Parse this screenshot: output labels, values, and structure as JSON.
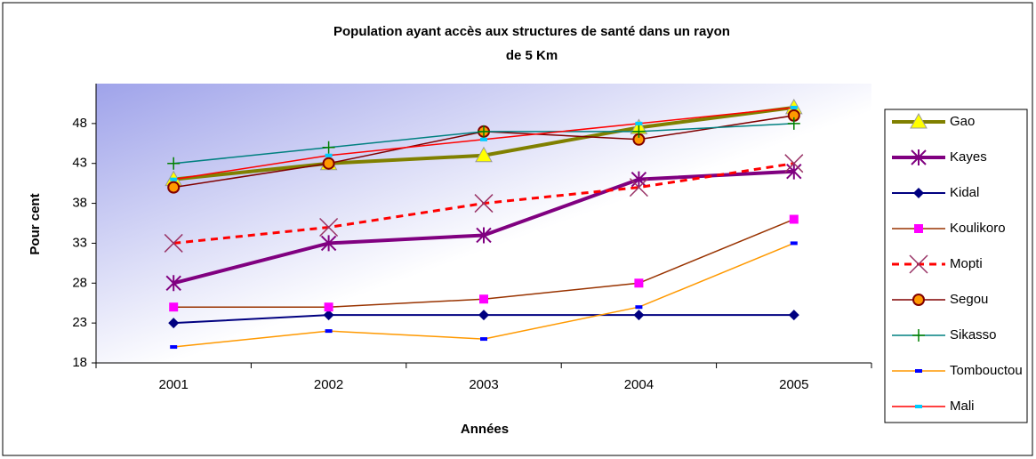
{
  "chart_data": {
    "type": "line",
    "title": [
      "Population ayant accès aux  structures de santé dans un rayon",
      "de 5 Km"
    ],
    "x_label": "Années",
    "y_label": "Pour cent",
    "categories": [
      "2001",
      "2002",
      "2003",
      "2004",
      "2005"
    ],
    "ylim": [
      18,
      53
    ],
    "yticks": [
      18,
      23,
      28,
      33,
      38,
      43,
      48
    ],
    "series": [
      {
        "name": "Gao",
        "color": "#808000",
        "marker": "triangle",
        "marker_color": "#ffff00",
        "width": 4,
        "values": [
          41,
          43,
          44,
          47.5,
          50
        ]
      },
      {
        "name": "Kayes",
        "color": "#800080",
        "marker": "star",
        "marker_color": "#800080",
        "width": 4,
        "values": [
          28,
          33,
          34,
          41,
          42
        ]
      },
      {
        "name": "Kidal",
        "color": "#000080",
        "marker": "diamond",
        "marker_color": "#000080",
        "width": 2,
        "values": [
          23,
          24,
          24,
          24,
          24
        ]
      },
      {
        "name": "Koulikoro",
        "color": "#993300",
        "marker": "square",
        "marker_color": "#ff00ff",
        "width": 1.5,
        "values": [
          25,
          25,
          26,
          28,
          36
        ]
      },
      {
        "name": "Mopti",
        "color": "#ff0000",
        "marker": "cross",
        "marker_color": "#993366",
        "width": 3,
        "dash": true,
        "values": [
          33,
          35,
          38,
          40,
          43
        ]
      },
      {
        "name": "Segou",
        "color": "#800000",
        "marker": "circle",
        "marker_color": "#ff9900",
        "width": 1.5,
        "values": [
          40,
          43,
          47,
          46,
          49
        ]
      },
      {
        "name": "Sikasso",
        "color": "#008080",
        "marker": "plus",
        "marker_color": "#008000",
        "width": 1.5,
        "values": [
          43,
          45,
          47,
          47,
          48
        ]
      },
      {
        "name": "Tombouctou",
        "color": "#ff9900",
        "marker": "dash",
        "marker_color": "#0000ff",
        "width": 1.5,
        "values": [
          20,
          22,
          21,
          25,
          33
        ]
      },
      {
        "name": "Mali",
        "color": "#ff0000",
        "marker": "dash",
        "marker_color": "#00ccff",
        "width": 1.5,
        "values": [
          41,
          44,
          46,
          48,
          50
        ]
      }
    ]
  }
}
